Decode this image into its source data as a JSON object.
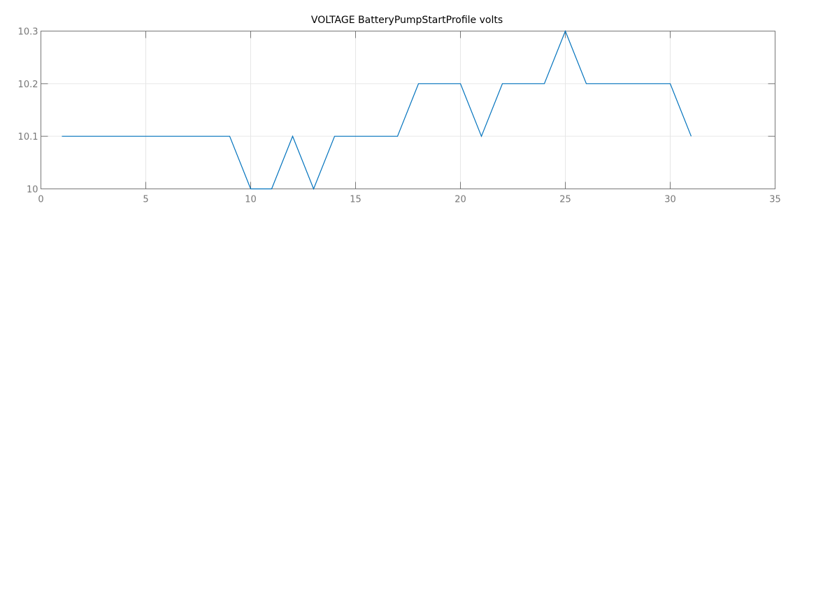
{
  "chart_data": {
    "type": "line",
    "title": "VOLTAGE BatteryPumpStartProfile volts",
    "xlabel": "",
    "ylabel": "",
    "xlim": [
      0,
      35
    ],
    "ylim": [
      10,
      10.3
    ],
    "grid": true,
    "x_ticks": [
      "0",
      "5",
      "10",
      "15",
      "20",
      "25",
      "30",
      "35"
    ],
    "y_ticks": [
      "10",
      "10.1",
      "10.2",
      "10.3"
    ],
    "line_color": "#0072bd",
    "series": [
      {
        "x": [
          1,
          2,
          3,
          4,
          5,
          6,
          7,
          8,
          9,
          10,
          11,
          12,
          13,
          14,
          15,
          16,
          17,
          18,
          19,
          20,
          21,
          22,
          23,
          24,
          25,
          26,
          27,
          28,
          29,
          30,
          31
        ],
        "values": [
          10.1,
          10.1,
          10.1,
          10.1,
          10.1,
          10.1,
          10.1,
          10.1,
          10.1,
          10.0,
          10.0,
          10.1,
          10.0,
          10.1,
          10.1,
          10.1,
          10.1,
          10.2,
          10.2,
          10.2,
          10.1,
          10.2,
          10.2,
          10.2,
          10.3,
          10.2,
          10.2,
          10.2,
          10.2,
          10.2,
          10.1
        ]
      }
    ]
  }
}
